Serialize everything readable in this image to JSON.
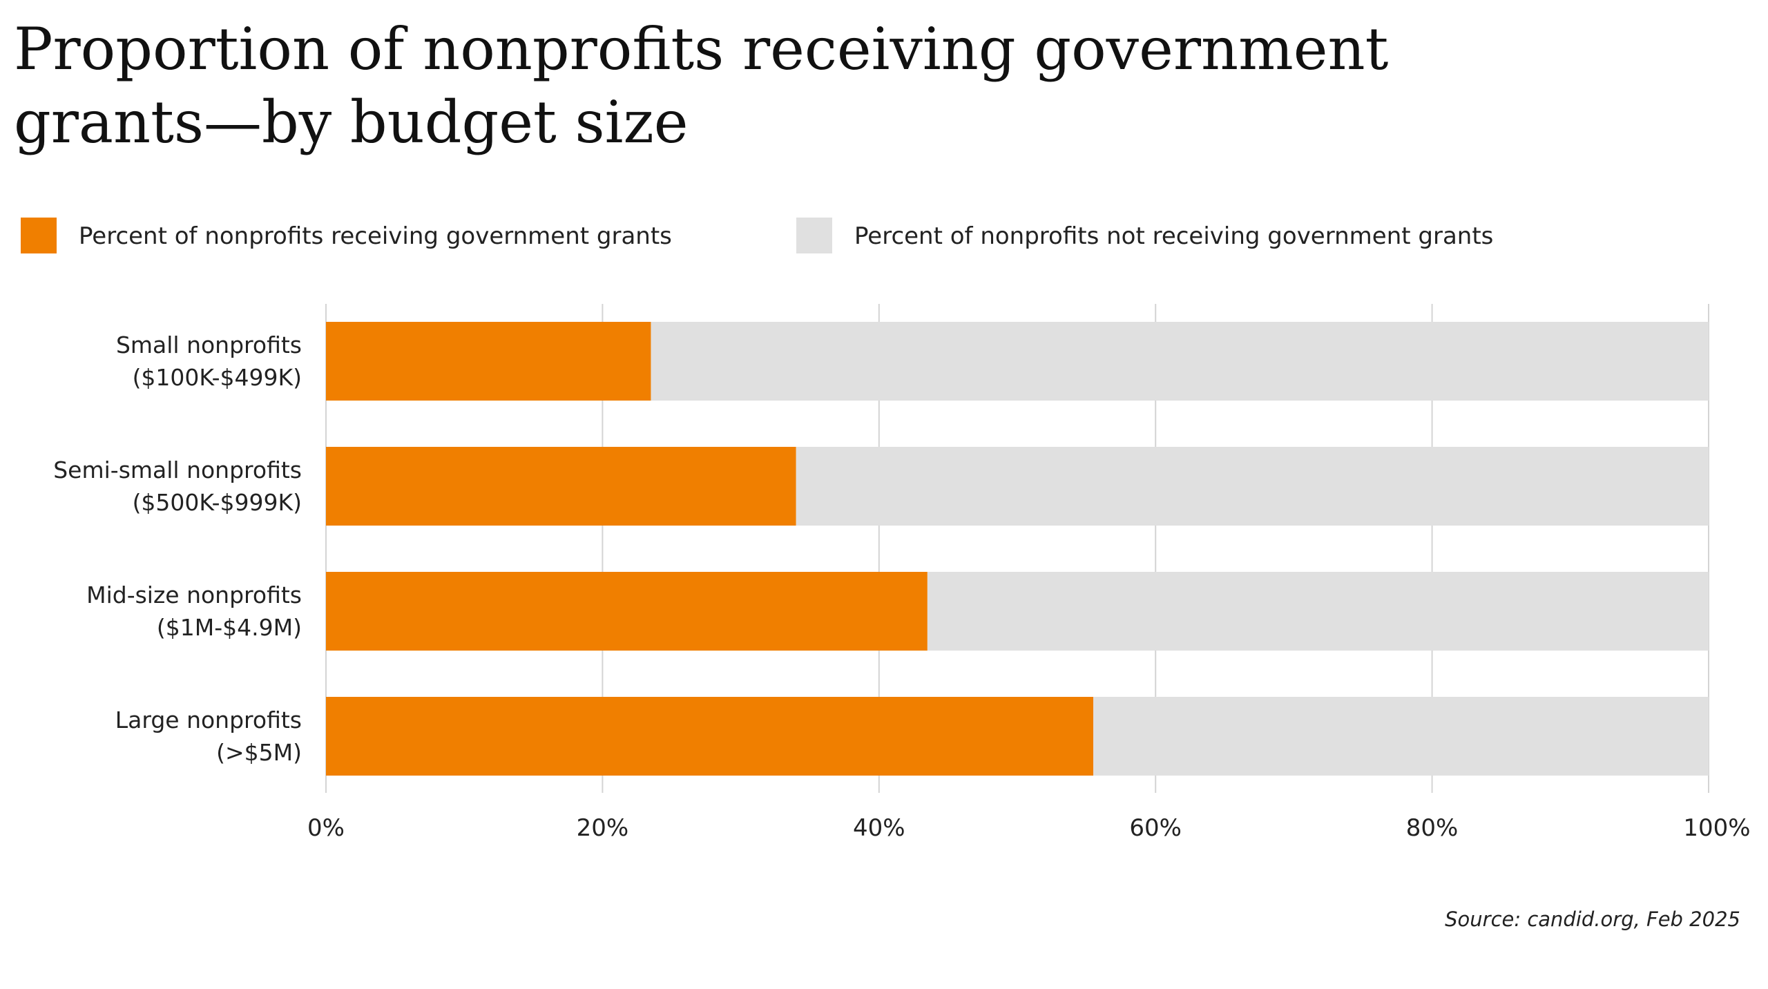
{
  "chart_data": {
    "type": "bar",
    "orientation": "horizontal",
    "stacked": true,
    "title": "Proportion of nonprofits receiving government grants—by budget size",
    "categories": [
      [
        "Small nonprofits",
        "($100K-$499K)"
      ],
      [
        "Semi-small nonprofits",
        "($500K-$999K)"
      ],
      [
        "Mid-size nonprofits",
        "($1M-$4.9M)"
      ],
      [
        "Large nonprofits",
        "(>$5M)"
      ]
    ],
    "series": [
      {
        "name": "Percent of nonprofits receiving government grants",
        "color": "#f07f00",
        "values": [
          23.5,
          34,
          43.5,
          55.5
        ]
      },
      {
        "name": "Percent of nonprofits not receiving government grants",
        "color": "#e0e0e0",
        "values": [
          76.5,
          66,
          56.5,
          44.5
        ]
      }
    ],
    "xlim": [
      0,
      100
    ],
    "xticks": [
      0,
      20,
      40,
      60,
      80,
      100
    ],
    "xtick_labels": [
      "0%",
      "20%",
      "40%",
      "60%",
      "80%",
      "100%"
    ],
    "grid": "vertical",
    "legend_position": "top-left",
    "source": "Source:  candid.org, Feb 2025"
  }
}
